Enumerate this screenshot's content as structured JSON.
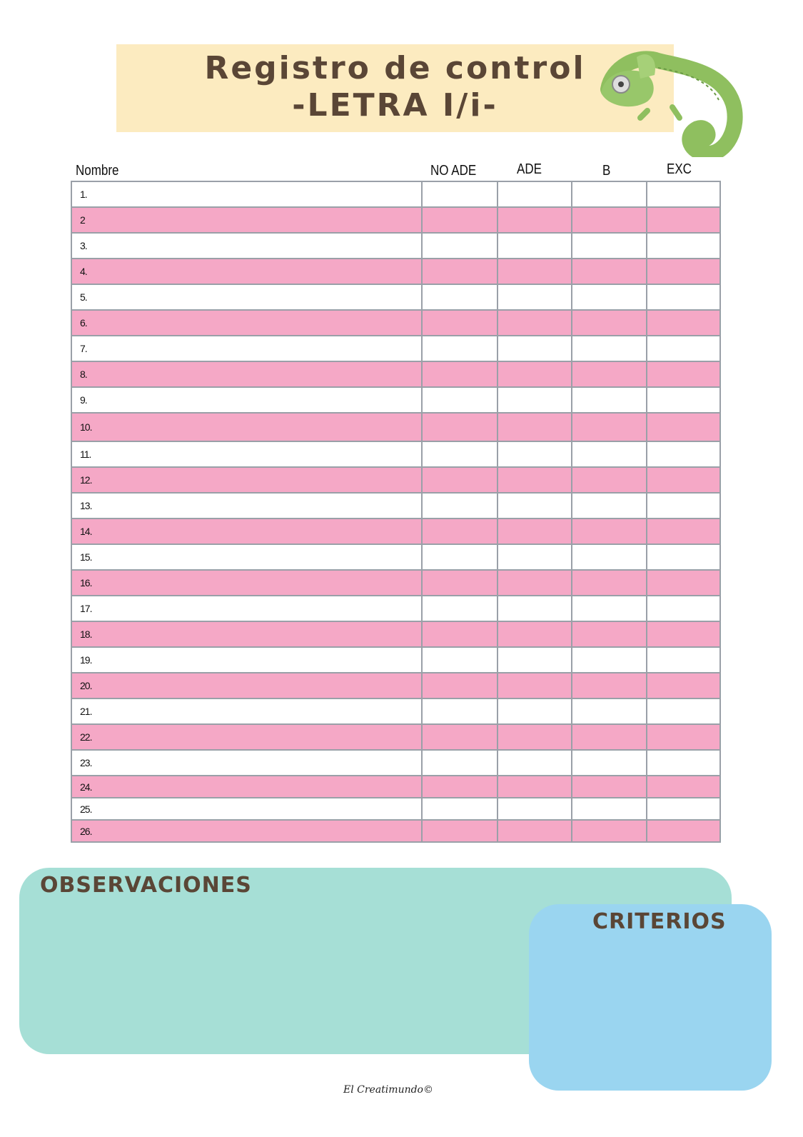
{
  "header": {
    "title_line1": "Registro de control",
    "title_line2": "-LETRA I/i-"
  },
  "table": {
    "columns": [
      "Nombre",
      "NO ADE",
      "ADE",
      "B",
      "EXC"
    ],
    "rows": [
      "1.",
      "2",
      "3.",
      "4.",
      "5.",
      "6.",
      "7.",
      "8.",
      "9.",
      "10.",
      "11.",
      "12.",
      "13.",
      "14.",
      "15.",
      "16.",
      "17.",
      "18.",
      "19.",
      "20.",
      "21.",
      "22.",
      "23.",
      "24.",
      "25.",
      "26."
    ]
  },
  "observaciones": {
    "title": "OBSERVACIONES"
  },
  "criterios": {
    "title": "CRITERIOS"
  },
  "footer": {
    "text": "El Creatimundo©"
  },
  "colors": {
    "title_bg": "#fcebc0",
    "row_pink": "#f5a8c6",
    "observaciones_bg": "#a6dfd6",
    "criterios_bg": "#9ad5f0",
    "title_text": "#5a4636"
  },
  "decoration": {
    "illustration": "chameleon"
  }
}
